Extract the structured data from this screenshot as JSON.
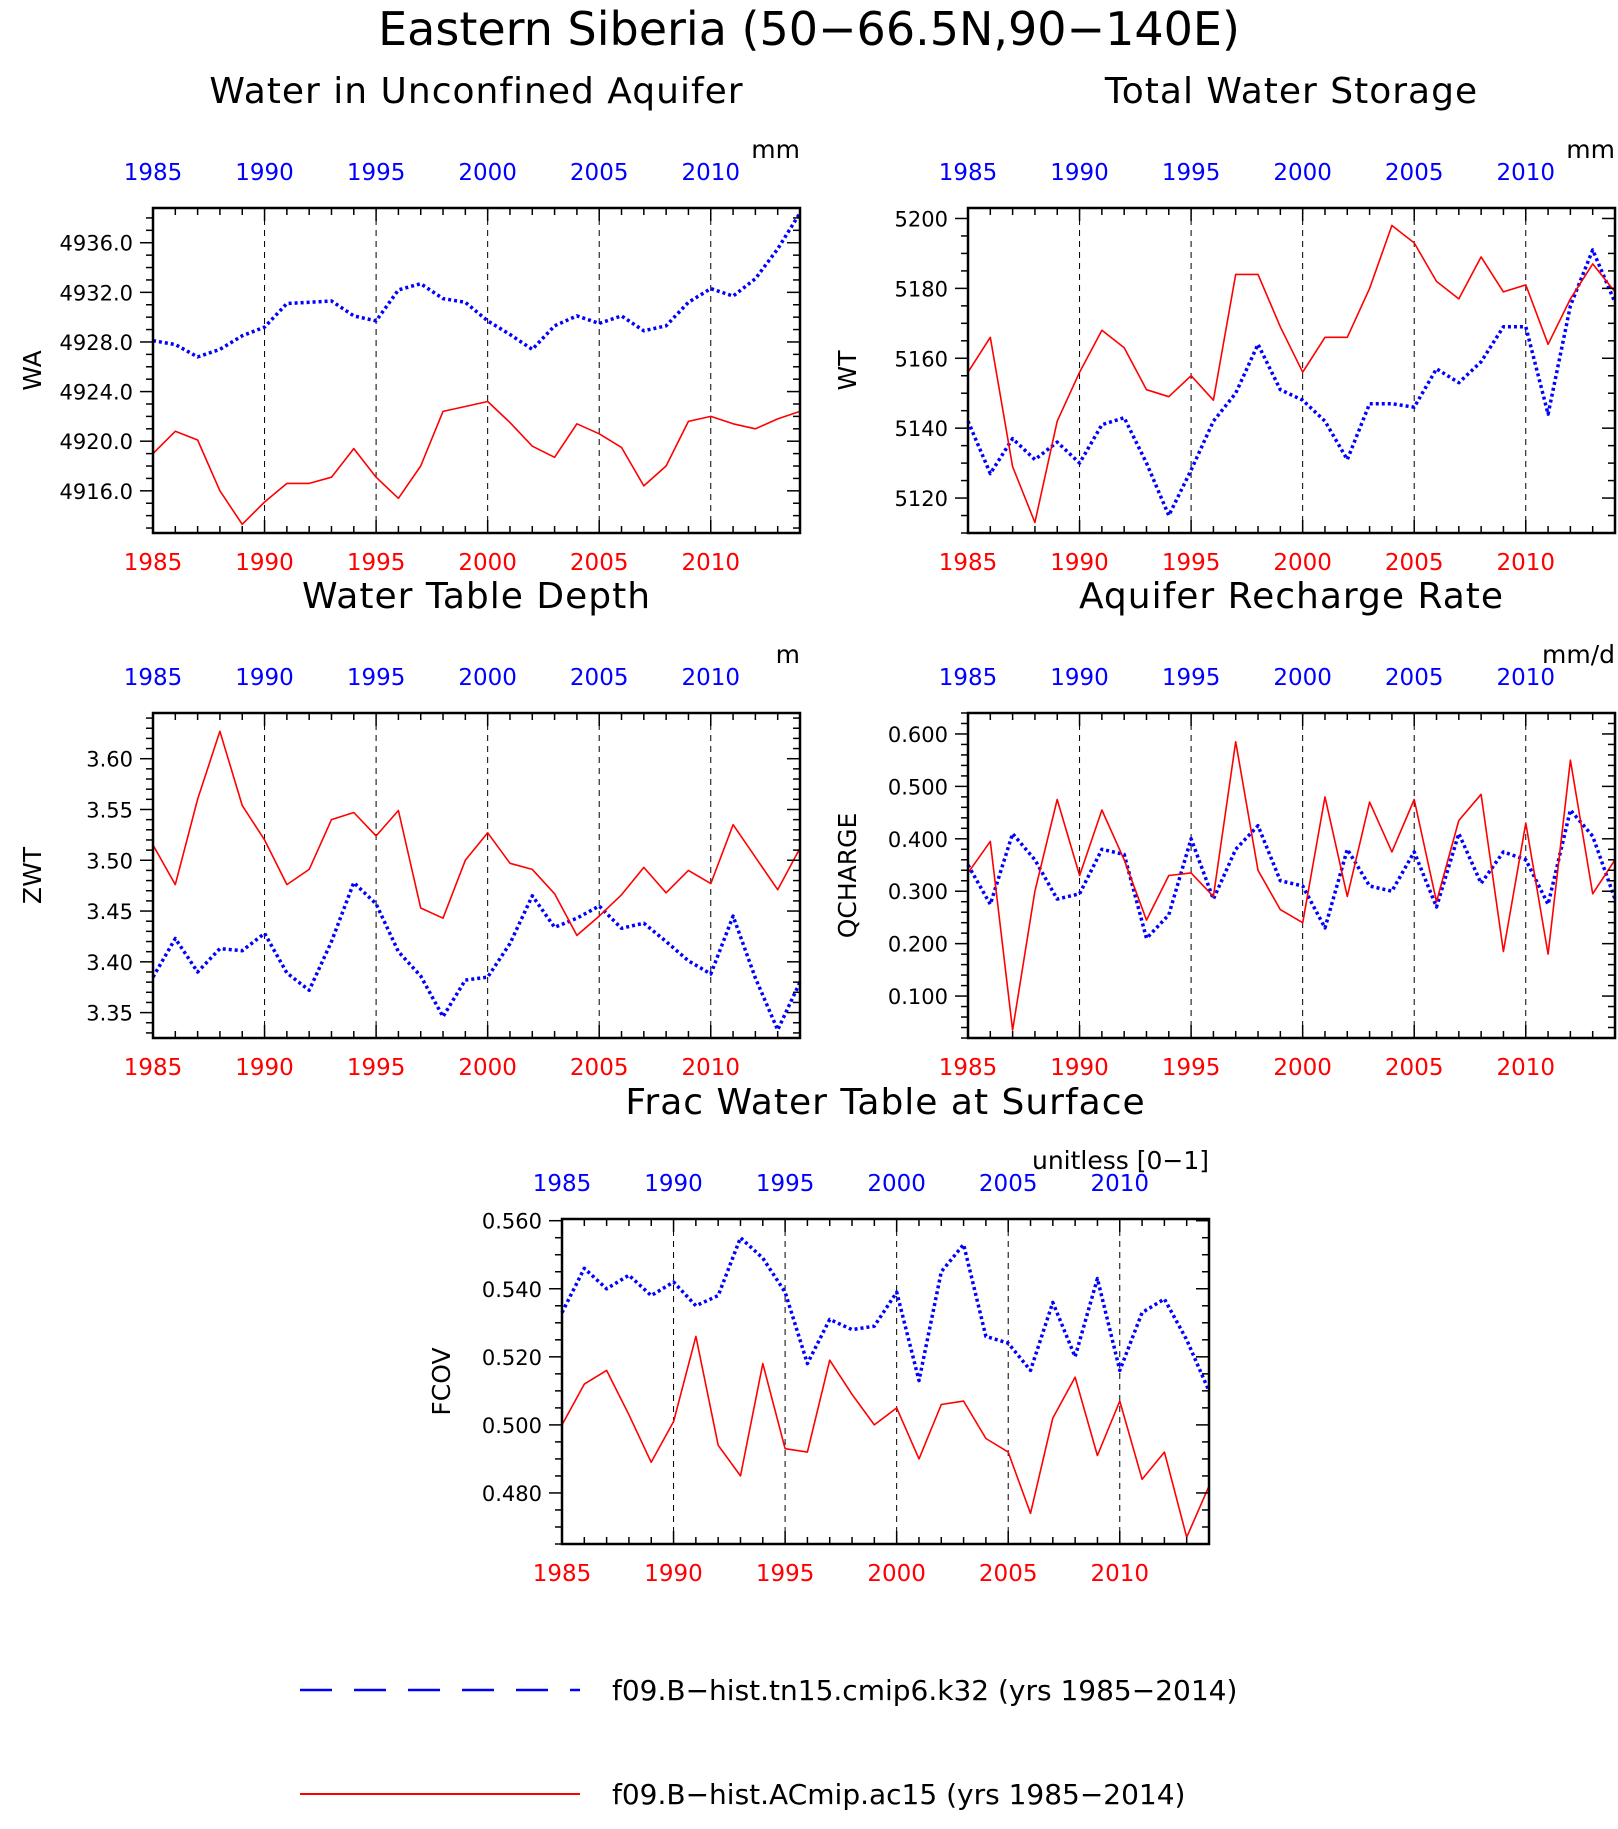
{
  "title": "Eastern Siberia (50−66.5N,90−140E)",
  "colors": {
    "series_a": "#0000ff",
    "series_b": "#ff0000",
    "axis": "#000000"
  },
  "legend": [
    {
      "label": "f09.B−hist.tn15.cmip6.k32 (yrs 1985−2014)",
      "color": "#0000ff",
      "style": "dashed"
    },
    {
      "label": "f09.B−hist.ACmip.ac15 (yrs 1985−2014)",
      "color": "#ff0000",
      "style": "solid"
    }
  ],
  "chart_data": [
    {
      "id": "wa",
      "type": "line",
      "title": "Water in Unconfined Aquifer",
      "units": "mm",
      "ylabel": "WA",
      "xlim": [
        1985,
        2014
      ],
      "ylim": [
        4912.6,
        4938.8
      ],
      "yticks": [
        4916,
        4920,
        4924,
        4928,
        4932,
        4936
      ],
      "ytick_labels": [
        "4916.0",
        "4920.0",
        "4924.0",
        "4928.0",
        "4932.0",
        "4936.0"
      ],
      "ytick_minor": 1,
      "xticks": [
        1985,
        1990,
        1995,
        2000,
        2005,
        2010
      ],
      "xtick_labels": [
        "1985",
        "1990",
        "1995",
        "2000",
        "2005",
        "2010"
      ],
      "vlines": [
        1990,
        1995,
        2000,
        2005,
        2010
      ],
      "series": [
        {
          "color": "#0000ff",
          "style": "dotted",
          "values": [
            4928.1,
            4927.8,
            4926.8,
            4927.4,
            4928.5,
            4929.2,
            4931.1,
            4931.2,
            4931.3,
            4930.1,
            4929.7,
            4932.2,
            4932.7,
            4931.5,
            4931.2,
            4929.7,
            4928.6,
            4927.4,
            4929.3,
            4930.1,
            4929.5,
            4930.1,
            4928.9,
            4929.3,
            4931.2,
            4932.3,
            4931.7,
            4933.1,
            4935.5,
            4938.4
          ]
        },
        {
          "color": "#ff0000",
          "style": "solid",
          "values": [
            4919.0,
            4920.8,
            4920.1,
            4916.0,
            4913.3,
            4915.1,
            4916.6,
            4916.6,
            4917.1,
            4919.4,
            4917.1,
            4915.4,
            4918.0,
            4922.4,
            4922.8,
            4923.2,
            4921.5,
            4919.6,
            4918.7,
            4921.4,
            4920.6,
            4919.5,
            4916.4,
            4918.0,
            4921.6,
            4922.0,
            4921.4,
            4921.0,
            4921.8,
            4922.4
          ]
        }
      ]
    },
    {
      "id": "wt",
      "type": "line",
      "title": "Total Water Storage",
      "units": "mm",
      "ylabel": "WT",
      "xlim": [
        1985,
        2014
      ],
      "ylim": [
        5110,
        5203
      ],
      "yticks": [
        5120,
        5140,
        5160,
        5180,
        5200
      ],
      "ytick_labels": [
        "5120",
        "5140",
        "5160",
        "5180",
        "5200"
      ],
      "ytick_minor": 5,
      "xticks": [
        1985,
        1990,
        1995,
        2000,
        2005,
        2010
      ],
      "xtick_labels": [
        "1985",
        "1990",
        "1995",
        "2000",
        "2005",
        "2010"
      ],
      "vlines": [
        1990,
        1995,
        2000,
        2005,
        2010
      ],
      "series": [
        {
          "color": "#0000ff",
          "style": "dotted",
          "values": [
            5142,
            5127,
            5137,
            5131,
            5136,
            5130,
            5141,
            5143,
            5130,
            5115,
            5128,
            5142,
            5150,
            5164,
            5151,
            5148,
            5142,
            5131,
            5147,
            5147,
            5146,
            5157,
            5153,
            5159,
            5169,
            5169,
            5144,
            5175,
            5191,
            5176
          ]
        },
        {
          "color": "#ff0000",
          "style": "solid",
          "values": [
            5156,
            5166,
            5129,
            5113,
            5142,
            5156,
            5168,
            5163,
            5151,
            5149,
            5155,
            5148,
            5184,
            5184,
            5169,
            5156,
            5166,
            5166,
            5180,
            5198,
            5193,
            5182,
            5177,
            5189,
            5179,
            5181,
            5164,
            5177,
            5187,
            5179
          ]
        }
      ]
    },
    {
      "id": "zwt",
      "type": "line",
      "title": "Water Table Depth",
      "units": "m",
      "ylabel": "ZWT",
      "xlim": [
        1985,
        2014
      ],
      "ylim": [
        3.325,
        3.645
      ],
      "yticks": [
        3.35,
        3.4,
        3.45,
        3.5,
        3.55,
        3.6
      ],
      "ytick_labels": [
        "3.35",
        "3.40",
        "3.45",
        "3.50",
        "3.55",
        "3.60"
      ],
      "ytick_minor": 0.01,
      "xticks": [
        1985,
        1990,
        1995,
        2000,
        2005,
        2010
      ],
      "xtick_labels": [
        "1985",
        "1990",
        "1995",
        "2000",
        "2005",
        "2010"
      ],
      "vlines": [
        1990,
        1995,
        2000,
        2005,
        2010
      ],
      "series": [
        {
          "color": "#0000ff",
          "style": "dotted",
          "values": [
            3.385,
            3.423,
            3.39,
            3.413,
            3.411,
            3.428,
            3.389,
            3.372,
            3.42,
            3.478,
            3.457,
            3.41,
            3.386,
            3.346,
            3.382,
            3.385,
            3.418,
            3.465,
            3.434,
            3.443,
            3.455,
            3.433,
            3.438,
            3.42,
            3.401,
            3.388,
            3.445,
            3.384,
            3.333,
            3.38
          ]
        },
        {
          "color": "#ff0000",
          "style": "solid",
          "values": [
            3.515,
            3.476,
            3.56,
            3.627,
            3.554,
            3.52,
            3.476,
            3.491,
            3.54,
            3.547,
            3.524,
            3.549,
            3.453,
            3.443,
            3.5,
            3.527,
            3.497,
            3.491,
            3.467,
            3.426,
            3.445,
            3.466,
            3.493,
            3.468,
            3.49,
            3.477,
            3.535,
            3.503,
            3.471,
            3.512
          ]
        }
      ]
    },
    {
      "id": "qcharge",
      "type": "line",
      "title": "Aquifer Recharge Rate",
      "units": "mm/d",
      "ylabel": "QCHARGE",
      "xlim": [
        1985,
        2014
      ],
      "ylim": [
        0.02,
        0.64
      ],
      "yticks": [
        0.1,
        0.2,
        0.3,
        0.4,
        0.5,
        0.6
      ],
      "ytick_labels": [
        "0.100",
        "0.200",
        "0.300",
        "0.400",
        "0.500",
        "0.600"
      ],
      "ytick_minor": 0.02,
      "xticks": [
        1985,
        1990,
        1995,
        2000,
        2005,
        2010
      ],
      "xtick_labels": [
        "1985",
        "1990",
        "1995",
        "2000",
        "2005",
        "2010"
      ],
      "vlines": [
        1990,
        1995,
        2000,
        2005,
        2010
      ],
      "series": [
        {
          "color": "#0000ff",
          "style": "dotted",
          "values": [
            0.35,
            0.275,
            0.41,
            0.36,
            0.285,
            0.295,
            0.38,
            0.37,
            0.21,
            0.255,
            0.4,
            0.285,
            0.38,
            0.425,
            0.32,
            0.31,
            0.23,
            0.38,
            0.31,
            0.3,
            0.375,
            0.27,
            0.41,
            0.315,
            0.375,
            0.36,
            0.275,
            0.455,
            0.405,
            0.285
          ]
        },
        {
          "color": "#ff0000",
          "style": "solid",
          "values": [
            0.335,
            0.395,
            0.035,
            0.3,
            0.475,
            0.33,
            0.455,
            0.36,
            0.245,
            0.33,
            0.335,
            0.29,
            0.585,
            0.34,
            0.265,
            0.24,
            0.48,
            0.29,
            0.47,
            0.375,
            0.475,
            0.28,
            0.435,
            0.485,
            0.185,
            0.43,
            0.18,
            0.55,
            0.295,
            0.36
          ]
        }
      ]
    },
    {
      "id": "fcov",
      "type": "line",
      "title": "Frac Water Table at Surface",
      "units": "unitless [0−1]",
      "ylabel": "FCOV",
      "xlim": [
        1985,
        2014
      ],
      "ylim": [
        0.465,
        0.5605
      ],
      "yticks": [
        0.48,
        0.5,
        0.52,
        0.54,
        0.56
      ],
      "ytick_labels": [
        "0.480",
        "0.500",
        "0.520",
        "0.540",
        "0.560"
      ],
      "ytick_minor": 0.005,
      "xticks": [
        1985,
        1990,
        1995,
        2000,
        2005,
        2010
      ],
      "xtick_labels": [
        "1985",
        "1990",
        "1995",
        "2000",
        "2005",
        "2010"
      ],
      "vlines": [
        1990,
        1995,
        2000,
        2005,
        2010
      ],
      "series": [
        {
          "color": "#0000ff",
          "style": "dotted",
          "values": [
            0.533,
            0.546,
            0.54,
            0.544,
            0.538,
            0.542,
            0.535,
            0.538,
            0.555,
            0.549,
            0.539,
            0.518,
            0.531,
            0.528,
            0.529,
            0.539,
            0.513,
            0.545,
            0.553,
            0.526,
            0.524,
            0.516,
            0.536,
            0.52,
            0.543,
            0.516,
            0.533,
            0.537,
            0.525,
            0.51
          ]
        },
        {
          "color": "#ff0000",
          "style": "solid",
          "values": [
            0.5,
            0.512,
            0.516,
            0.503,
            0.489,
            0.501,
            0.526,
            0.494,
            0.485,
            0.518,
            0.493,
            0.492,
            0.519,
            0.509,
            0.5,
            0.505,
            0.49,
            0.506,
            0.507,
            0.496,
            0.492,
            0.474,
            0.502,
            0.514,
            0.491,
            0.507,
            0.484,
            0.492,
            0.467,
            0.482
          ]
        }
      ]
    }
  ]
}
